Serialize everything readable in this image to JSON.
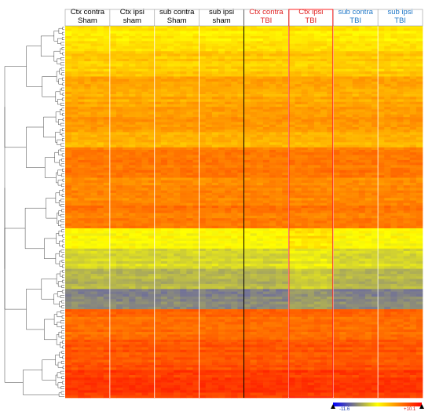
{
  "chart_data": {
    "type": "heatmap",
    "title": "",
    "xlabel": "",
    "ylabel": "",
    "groups": [
      {
        "line1": "Ctx contra",
        "line2": "Sham",
        "color": "#000000"
      },
      {
        "line1": "Ctx ipsi",
        "line2": "sham",
        "color": "#000000"
      },
      {
        "line1": "sub contra",
        "line2": "Sham",
        "color": "#000000"
      },
      {
        "line1": "sub ipsi",
        "line2": "sham",
        "color": "#000000"
      },
      {
        "line1": "Ctx contra",
        "line2": "TBI",
        "color": "#e02020"
      },
      {
        "line1": "Ctx ipsi",
        "line2": "TBI",
        "color": "#e02020"
      },
      {
        "line1": "sub contra",
        "line2": "TBI",
        "color": "#1f78c8"
      },
      {
        "line1": "sub ipsi",
        "line2": "TBI",
        "color": "#1f78c8"
      }
    ],
    "highlighted_group": 5,
    "bands": [
      {
        "rows": 10,
        "value": 1.0
      },
      {
        "rows": 10,
        "value": 2.5
      },
      {
        "rows": 12,
        "value": 4.0
      },
      {
        "rows": 10,
        "value": 4.8
      },
      {
        "rows": 6,
        "value": 3.2
      },
      {
        "rows": 12,
        "value": 6.2
      },
      {
        "rows": 10,
        "value": 5.5
      },
      {
        "rows": 10,
        "value": 6.3
      },
      {
        "rows": 8,
        "value": 0.0
      },
      {
        "rows": 8,
        "value": -2.0
      },
      {
        "rows": 8,
        "value": -4.0
      },
      {
        "rows": 8,
        "value": -6.5
      },
      {
        "rows": 12,
        "value": 7.0
      },
      {
        "rows": 12,
        "value": 8.0
      },
      {
        "rows": 11,
        "value": 9.2
      }
    ],
    "colorscale": {
      "min": -11.6,
      "max": 10.1,
      "low_color": "#0000ff",
      "mid_color": "#ffff00",
      "high_color": "#ff0000"
    },
    "colorbar": {
      "min_label": "-11.6",
      "max_label": "+10.1"
    }
  }
}
